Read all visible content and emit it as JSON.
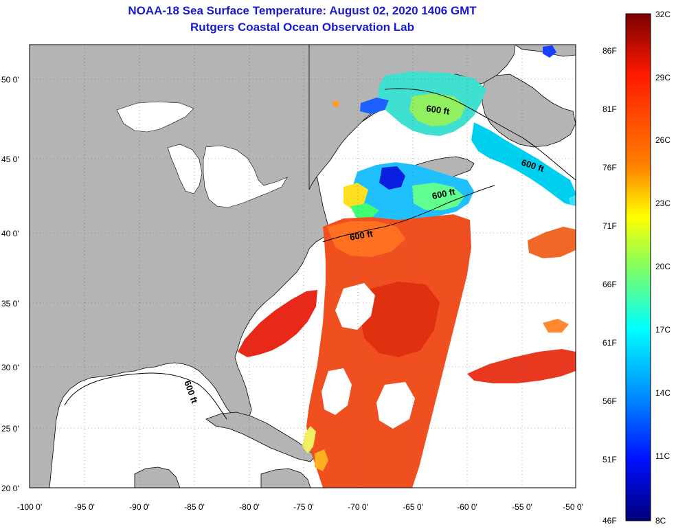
{
  "header": {
    "title_line1": "NOAA-18 Sea Surface Temperature:  August 02, 2020 1406 GMT",
    "title_line2": "Rutgers Coastal Ocean Observation Lab"
  },
  "map": {
    "lon_range": [
      -100,
      -50
    ],
    "lat_range": [
      20,
      52.5
    ],
    "lon_ticks": [
      "-100 0'",
      "-95 0'",
      "-90 0'",
      "-85 0'",
      "-80 0'",
      "-75 0'",
      "-70 0'",
      "-65 0'",
      "-60 0'",
      "-55 0'",
      "-50 0'"
    ],
    "lat_ticks": [
      "20 0'",
      "25 0'",
      "30 0'",
      "35 0'",
      "40 0'",
      "45 0'",
      "50 0'"
    ],
    "contour_label": "600 ft",
    "land_color": "#b4b4b4",
    "no_data_color": "#ffffff"
  },
  "colorbar": {
    "fahrenheit_labels": [
      "86F",
      "81F",
      "76F",
      "71F",
      "66F",
      "61F",
      "56F",
      "51F",
      "46F"
    ],
    "celsius_labels": [
      "32C",
      "29C",
      "26C",
      "23C",
      "20C",
      "17C",
      "14C",
      "11C",
      "8C"
    ],
    "gradient_stops": [
      "#800000",
      "#ff0000",
      "#ff8000",
      "#ffff00",
      "#80ff80",
      "#00ffff",
      "#0080ff",
      "#0000ff",
      "#000080"
    ]
  }
}
